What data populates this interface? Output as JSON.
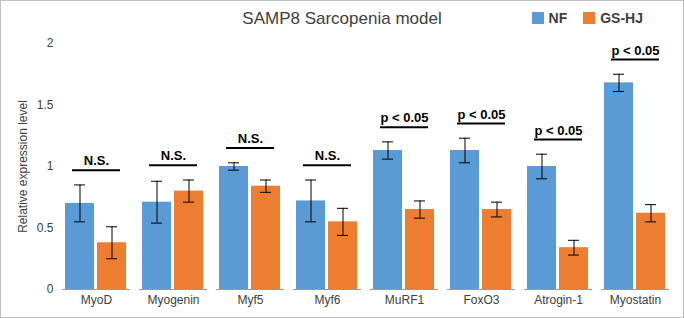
{
  "chart_data": {
    "type": "bar",
    "title": "SAMP8 Sarcopenia model",
    "y_label": "Relative expression level",
    "categories": [
      "MyoD",
      "Myogenin",
      "Myf5",
      "Myf6",
      "MuRF1",
      "FoxO3",
      "Atrogin-1",
      "Myostatin"
    ],
    "series": [
      {
        "name": "NF",
        "color": "#5b9bd5",
        "values": [
          0.7,
          0.71,
          1.0,
          0.72,
          1.13,
          1.13,
          1.0,
          1.68
        ],
        "errors": [
          0.15,
          0.17,
          0.03,
          0.17,
          0.07,
          0.1,
          0.1,
          0.07
        ]
      },
      {
        "name": "GS-HJ",
        "color": "#ed7d31",
        "values": [
          0.38,
          0.8,
          0.84,
          0.55,
          0.65,
          0.65,
          0.34,
          0.62
        ],
        "errors": [
          0.13,
          0.09,
          0.05,
          0.11,
          0.07,
          0.06,
          0.06,
          0.07
        ]
      }
    ],
    "annotations": [
      "N.S.",
      "N.S.",
      "N.S.",
      "N.S.",
      "p < 0.05",
      "p < 0.05",
      "p < 0.05",
      "p < 0.05"
    ],
    "ylim": [
      0,
      2
    ],
    "yticks": [
      0,
      0.5,
      1,
      1.5,
      2
    ],
    "grid": false,
    "legend": "top-right"
  }
}
